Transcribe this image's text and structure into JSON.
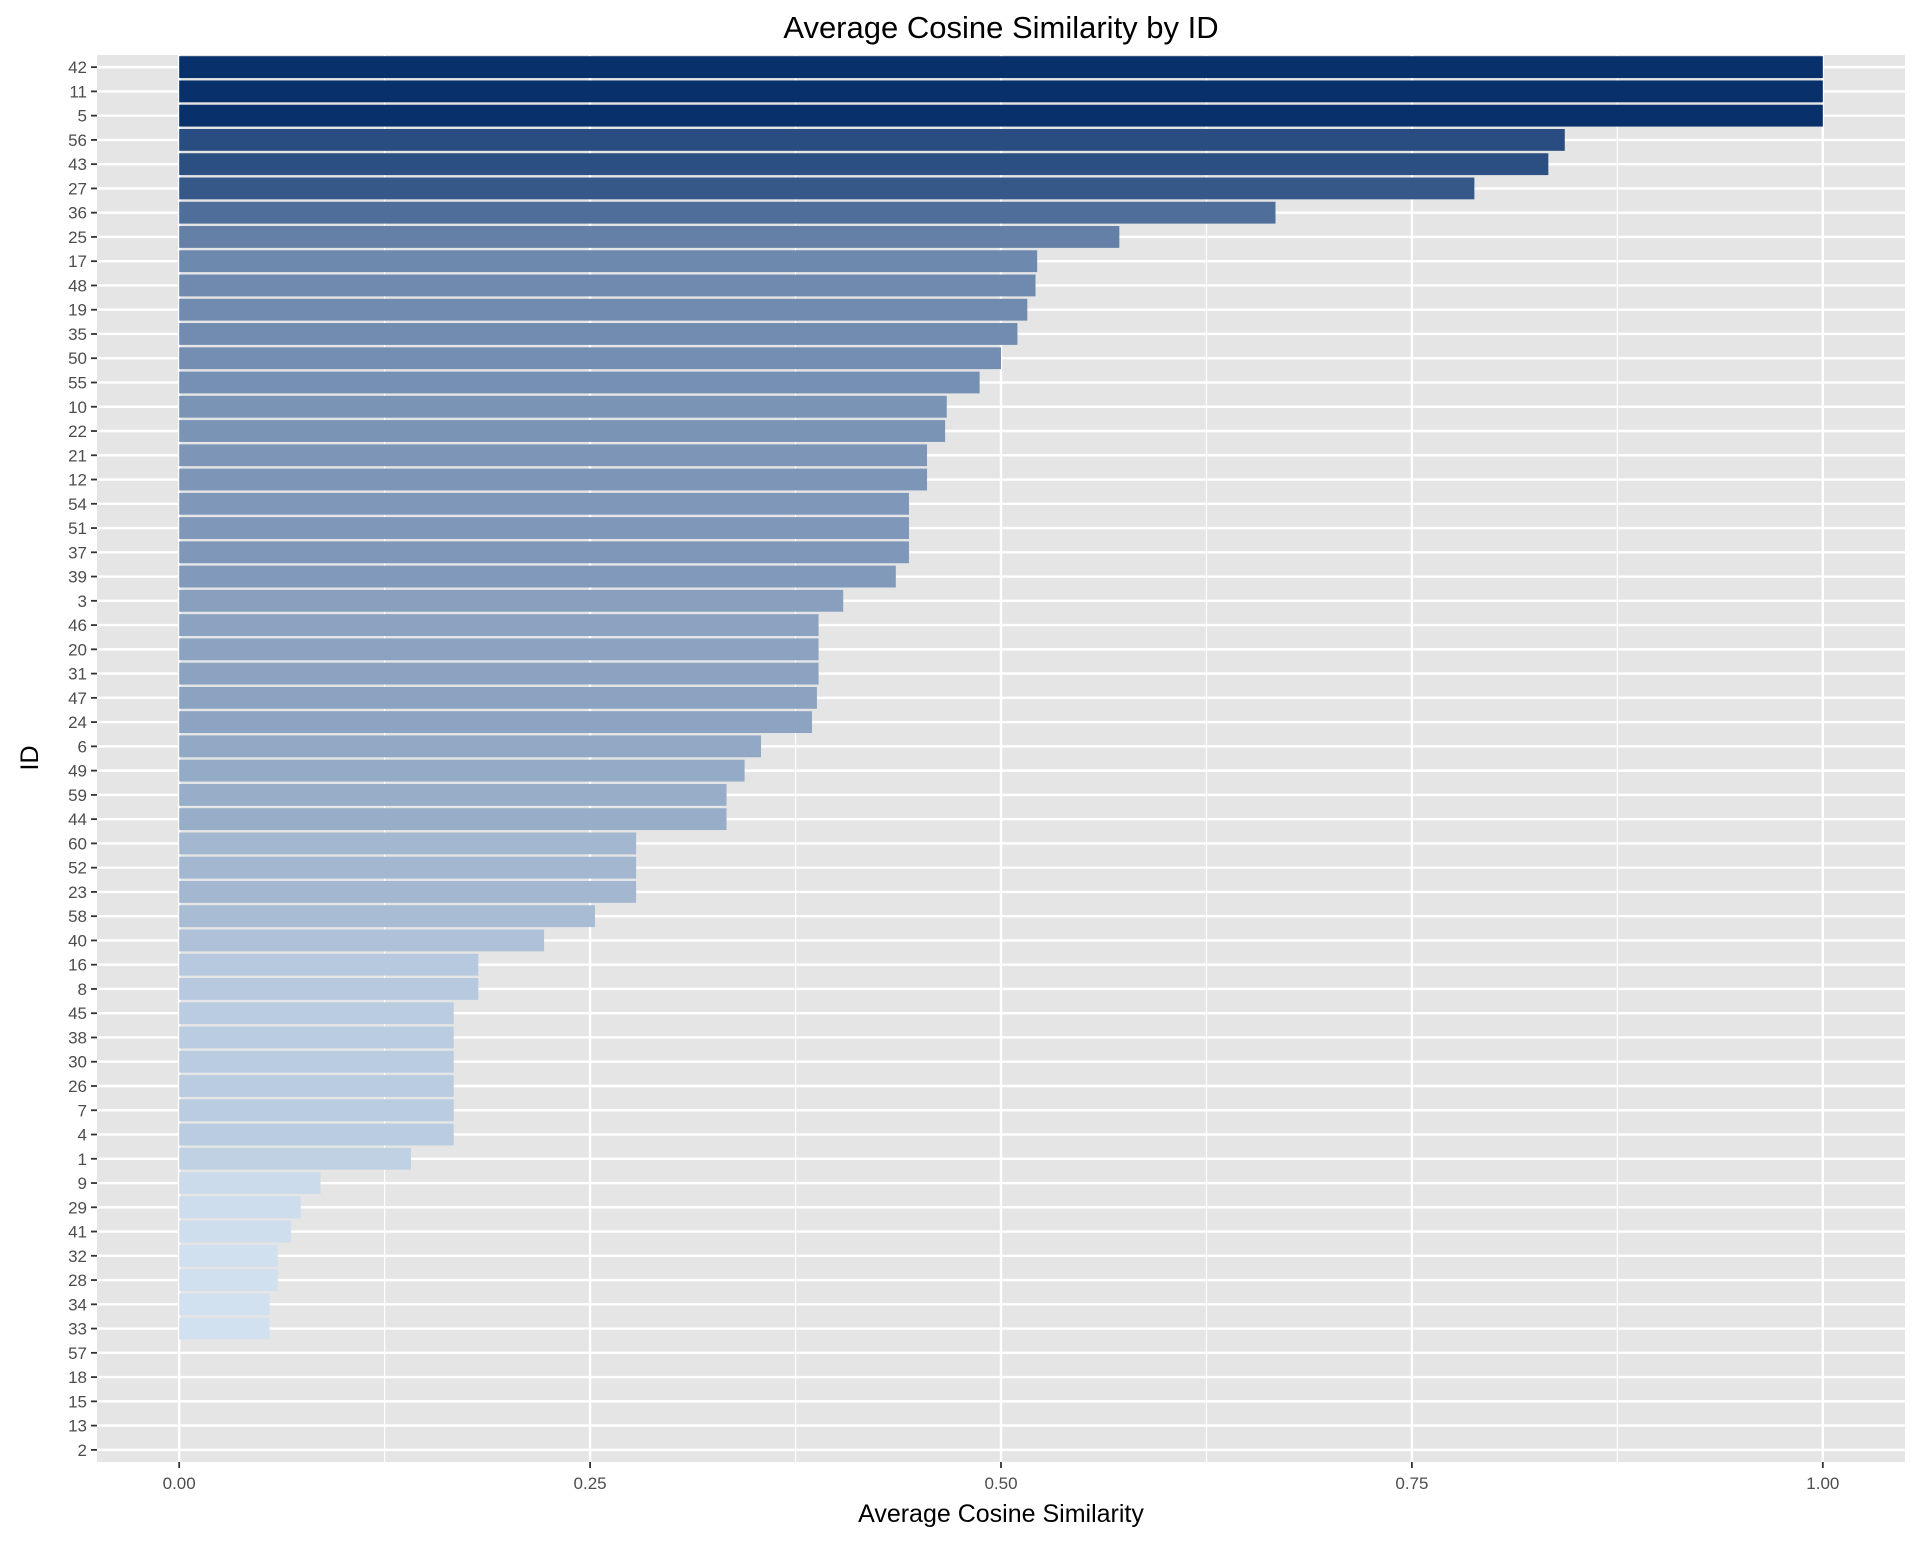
{
  "chart_data": {
    "type": "bar",
    "orientation": "horizontal",
    "title": "Average Cosine Similarity by ID",
    "xlabel": "Average Cosine Similarity",
    "ylabel": "ID",
    "xlim": [
      -0.05,
      1.05
    ],
    "xticks": [
      0.0,
      0.25,
      0.5,
      0.75,
      1.0
    ],
    "xtick_labels": [
      "0.00",
      "0.25",
      "0.50",
      "0.75",
      "1.00"
    ],
    "grid": true,
    "legend": "none",
    "fill_scale": "blues (light = low, dark = high)",
    "categories": [
      "42",
      "11",
      "5",
      "56",
      "43",
      "27",
      "36",
      "25",
      "17",
      "48",
      "19",
      "35",
      "50",
      "55",
      "10",
      "22",
      "21",
      "12",
      "54",
      "51",
      "37",
      "39",
      "3",
      "46",
      "20",
      "31",
      "47",
      "24",
      "6",
      "49",
      "59",
      "44",
      "60",
      "52",
      "23",
      "58",
      "40",
      "16",
      "8",
      "45",
      "38",
      "30",
      "26",
      "7",
      "4",
      "1",
      "9",
      "29",
      "41",
      "32",
      "28",
      "34",
      "33",
      "57",
      "18",
      "15",
      "13",
      "2"
    ],
    "values": [
      1.0,
      1.0,
      1.0,
      0.843,
      0.833,
      0.788,
      0.667,
      0.572,
      0.522,
      0.521,
      0.516,
      0.51,
      0.5,
      0.487,
      0.467,
      0.466,
      0.455,
      0.455,
      0.444,
      0.444,
      0.444,
      0.436,
      0.404,
      0.389,
      0.389,
      0.389,
      0.388,
      0.385,
      0.354,
      0.344,
      0.333,
      0.333,
      0.278,
      0.278,
      0.278,
      0.253,
      0.222,
      0.182,
      0.182,
      0.167,
      0.167,
      0.167,
      0.167,
      0.167,
      0.167,
      0.141,
      0.086,
      0.074,
      0.068,
      0.06,
      0.06,
      0.055,
      0.055,
      0,
      0,
      0,
      0,
      0
    ]
  },
  "colors": {
    "panel_background": "#e5e5e5",
    "grid": "#ffffff",
    "bar_high": "#08306b",
    "bar_low": "#deebf7",
    "text": "#000000",
    "tick_text": "#4d4d4d"
  }
}
